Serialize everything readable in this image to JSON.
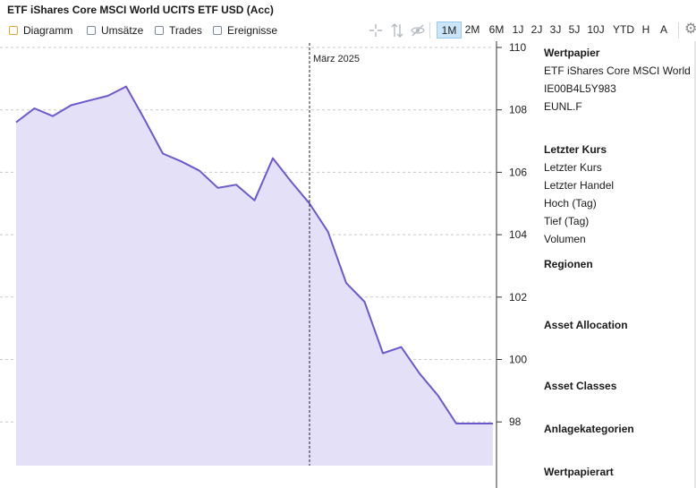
{
  "title": "ETF iShares Core MSCI World UCITS ETF USD (Acc)",
  "toolbar": {
    "checkboxes": [
      {
        "label": "Diagramm",
        "checked": true
      },
      {
        "label": "Umsätze",
        "checked": false
      },
      {
        "label": "Trades",
        "checked": false
      },
      {
        "label": "Ereignisse",
        "checked": false
      }
    ],
    "icons": [
      "crosshair-icon",
      "vertical-resize-icon",
      "eye-hidden-icon"
    ],
    "ranges": [
      "1M",
      "2M",
      "6M",
      "1J",
      "2J",
      "3J",
      "5J",
      "10J",
      "YTD",
      "H",
      "A"
    ],
    "active_range": "1M"
  },
  "chart_data": {
    "type": "area",
    "title": "",
    "xlabel": "",
    "ylabel": "",
    "ylim": [
      96.6,
      110
    ],
    "yticks": [
      98,
      100,
      102,
      104,
      106,
      108,
      110
    ],
    "y_axis_side": "right",
    "grid": true,
    "line_color": "#6a5acd",
    "fill_color": "#e3e0f8",
    "marker_label": "März 2025",
    "marker_x_index": 16,
    "x": [
      0,
      1,
      2,
      3,
      4,
      5,
      6,
      7,
      8,
      9,
      10,
      11,
      12,
      13,
      14,
      15,
      16,
      17,
      18,
      19,
      20,
      21,
      22,
      23,
      24,
      25,
      26
    ],
    "values": [
      107.6,
      108.05,
      107.8,
      108.15,
      108.3,
      108.45,
      108.75,
      107.7,
      106.6,
      106.35,
      106.05,
      105.5,
      105.6,
      105.1,
      106.45,
      105.7,
      105.0,
      104.1,
      102.45,
      101.85,
      100.2,
      100.4,
      99.55,
      98.85,
      97.95,
      97.95,
      97.95
    ]
  },
  "sidebar": {
    "wertpapier_header": "Wertpapier",
    "wertpapier_name": "ETF iShares Core MSCI World UCITS ETF USD (Acc)",
    "isin": "IE00B4L5Y983",
    "ticker": "EUNL.F",
    "kurs_header": "Letzter Kurs",
    "kurs_rows": [
      "Letzter Kurs",
      "Letzter Handel",
      "Hoch (Tag)",
      "Tief (Tag)",
      "Volumen"
    ],
    "regionen": "Regionen",
    "asset_allocation": "Asset Allocation",
    "asset_classes": "Asset Classes",
    "anlagekategorien": "Anlagekategorien",
    "wertpapierart": "Wertpapierart"
  }
}
